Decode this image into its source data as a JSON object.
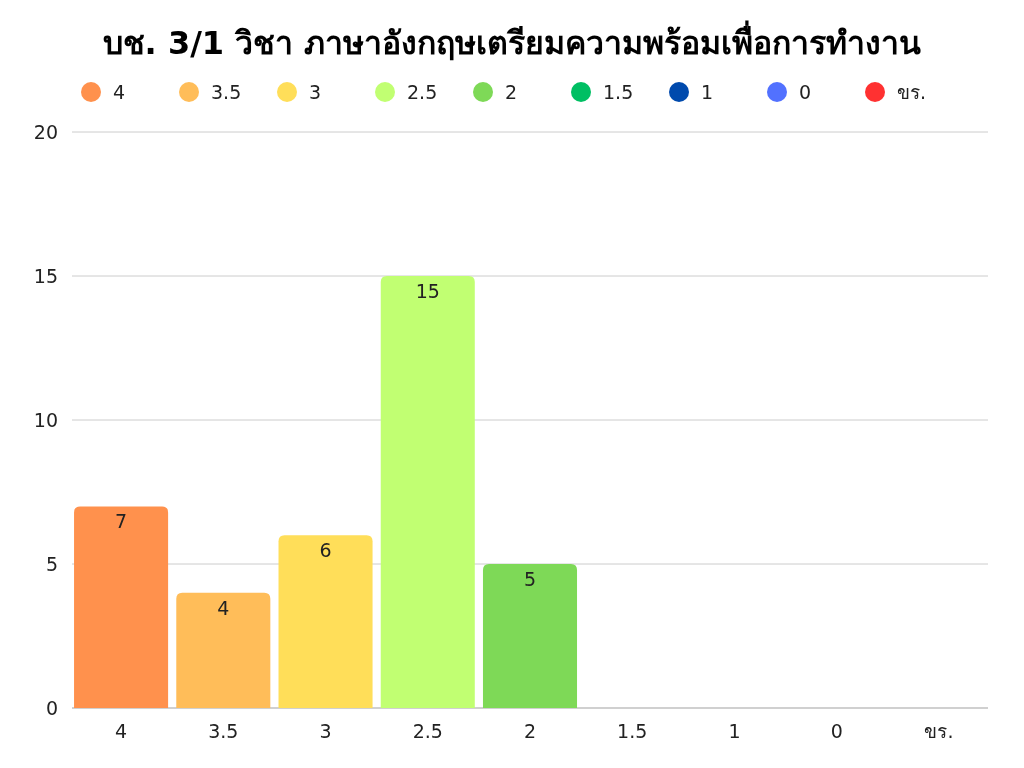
{
  "chart_data": {
    "type": "bar",
    "title": "บช. 3/1 วิชา ภาษาอังกฤษเตรียมความพร้อมเพื่อการทำงาน",
    "categories": [
      "4",
      "3.5",
      "3",
      "2.5",
      "2",
      "1.5",
      "1",
      "0",
      "ขร."
    ],
    "series": [
      {
        "name": "4",
        "color": "#ff914d",
        "values": [
          7,
          null,
          null,
          null,
          null,
          null,
          null,
          null,
          null
        ],
        "value_labels": [
          "7",
          null,
          null,
          null,
          null,
          null,
          null,
          null,
          null
        ]
      },
      {
        "name": "3.5",
        "color": "#ffbd59",
        "values": [
          null,
          4,
          null,
          null,
          null,
          null,
          null,
          null,
          null
        ],
        "value_labels": [
          null,
          "4",
          null,
          null,
          null,
          null,
          null,
          null,
          null
        ]
      },
      {
        "name": "3",
        "color": "#ffde59",
        "values": [
          null,
          null,
          6,
          null,
          null,
          null,
          null,
          null,
          null
        ],
        "value_labels": [
          null,
          null,
          "6",
          null,
          null,
          null,
          null,
          null,
          null
        ]
      },
      {
        "name": "2.5",
        "color": "#c1ff72",
        "values": [
          null,
          null,
          null,
          15,
          null,
          null,
          null,
          null,
          null
        ],
        "value_labels": [
          null,
          null,
          null,
          "15",
          null,
          null,
          null,
          null,
          null
        ]
      },
      {
        "name": "2",
        "color": "#7ed957",
        "values": [
          null,
          null,
          null,
          null,
          5,
          null,
          null,
          null,
          null
        ],
        "value_labels": [
          null,
          null,
          null,
          null,
          "5",
          null,
          null,
          null,
          null
        ]
      },
      {
        "name": "1.5",
        "color": "#00bf63",
        "values": [
          null,
          null,
          null,
          null,
          null,
          0,
          null,
          null,
          null
        ]
      },
      {
        "name": "1",
        "color": "#004aad",
        "values": [
          null,
          null,
          null,
          null,
          null,
          null,
          0,
          null,
          null
        ]
      },
      {
        "name": "0",
        "color": "#5271ff",
        "values": [
          null,
          null,
          null,
          null,
          null,
          null,
          null,
          0,
          null
        ]
      },
      {
        "name": "ขร.",
        "color": "#ff3131",
        "values": [
          null,
          null,
          null,
          null,
          null,
          null,
          null,
          null,
          0
        ]
      }
    ],
    "ylim": [
      0,
      20
    ],
    "yticks": [
      0,
      5,
      10,
      15,
      20
    ],
    "grid": "y",
    "legend": "top"
  }
}
